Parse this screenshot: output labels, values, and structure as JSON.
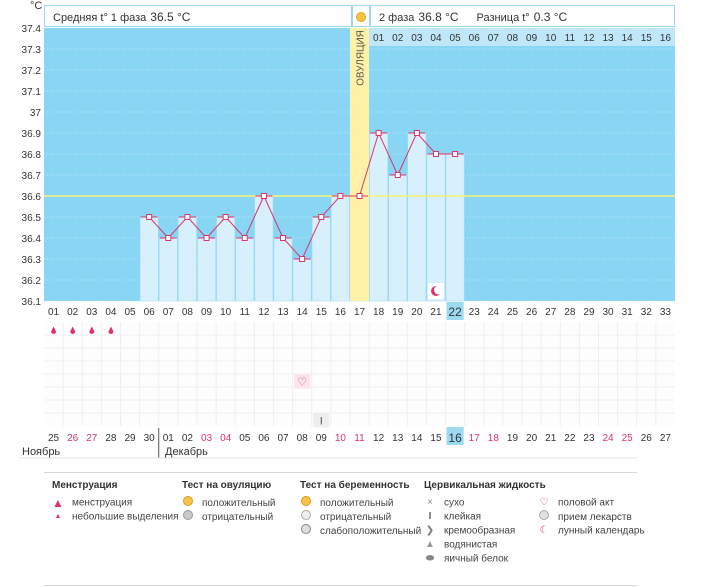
{
  "header": {
    "unit": "°C",
    "phase1_label": "Средняя t° 1 фаза",
    "phase1_value": "36.5 °C",
    "phase2_label": "2 фаза",
    "phase2_value": "36.8 °C",
    "diff_label": "Разница t°",
    "diff_value": "0.3 °C"
  },
  "chart_data": {
    "type": "line",
    "ylim": [
      36.1,
      37.4
    ],
    "y_ticks": [
      "37.4",
      "37.3",
      "37.2",
      "37.1",
      "37",
      "36.9",
      "36.8",
      "36.7",
      "36.6",
      "36.5",
      "36.4",
      "36.3",
      "36.2",
      "36.1"
    ],
    "coverline": 36.6,
    "ovulation_day": 17,
    "ovulation_label": "ОВУЛЯЦИЯ",
    "cycle_days": [
      "01",
      "02",
      "03",
      "04",
      "05",
      "06",
      "07",
      "08",
      "09",
      "10",
      "11",
      "12",
      "13",
      "14",
      "15",
      "16",
      "17",
      "18",
      "19",
      "20",
      "21",
      "22",
      "23",
      "24",
      "25",
      "26",
      "27",
      "28",
      "29",
      "30",
      "31",
      "32",
      "33"
    ],
    "phase2_days": [
      "01",
      "02",
      "03",
      "04",
      "05",
      "06",
      "07",
      "08",
      "09",
      "10",
      "11",
      "12",
      "13",
      "14",
      "15",
      "16"
    ],
    "series": [
      {
        "x": [
          6,
          7,
          8,
          9,
          10,
          11,
          12,
          13,
          14,
          15,
          16,
          17,
          18,
          19,
          20,
          21,
          22
        ],
        "values": [
          36.5,
          36.4,
          36.5,
          36.4,
          36.5,
          36.4,
          36.6,
          36.4,
          36.3,
          36.5,
          36.6,
          36.6,
          36.9,
          36.7,
          36.9,
          36.8,
          36.8
        ]
      }
    ],
    "current_cycle_day": "22",
    "calendar_dates": [
      "25",
      "26",
      "27",
      "28",
      "29",
      "30",
      "01",
      "02",
      "03",
      "04",
      "05",
      "06",
      "07",
      "08",
      "09",
      "10",
      "11",
      "12",
      "13",
      "14",
      "15",
      "16",
      "17",
      "18",
      "19",
      "20",
      "21",
      "22",
      "23",
      "24",
      "25",
      "26",
      "27"
    ],
    "weekend_dates": [
      2,
      3,
      9,
      10,
      16,
      17,
      23,
      24,
      30,
      31
    ],
    "current_date": "16",
    "months": [
      {
        "name": "Ноябрь",
        "start": 1
      },
      {
        "name": "Декабрь",
        "start": 7
      }
    ],
    "marks": [
      {
        "day": 1,
        "row": "menses",
        "icon": "drop-small"
      },
      {
        "day": 2,
        "row": "menses",
        "icon": "drop-small"
      },
      {
        "day": 3,
        "row": "menses",
        "icon": "drop-small"
      },
      {
        "day": 4,
        "row": "menses",
        "icon": "drop-small"
      },
      {
        "day": 14,
        "row": "intercourse",
        "icon": "heart"
      },
      {
        "day": 15,
        "row": "mucus",
        "icon": "sticky"
      },
      {
        "day": 21,
        "row": "chart",
        "icon": "moon"
      }
    ]
  },
  "legend": {
    "menstruation": {
      "title": "Менструация",
      "items": [
        "менструация",
        "небольшие выделения"
      ]
    },
    "ovulation_test": {
      "title": "Тест на овуляцию",
      "items": [
        "положительный",
        "отрицательный"
      ]
    },
    "pregnancy_test": {
      "title": "Тест на беременность",
      "items": [
        "положительный",
        "отрицательный",
        "слабоположительный"
      ]
    },
    "cervical": {
      "title": "Цервикальная жидкость",
      "items": [
        "сухо",
        "клейкая",
        "кремообразная",
        "водянистая",
        "яичный белок"
      ]
    },
    "other": {
      "items": [
        "половой акт",
        "прием лекарств",
        "лунный календарь"
      ]
    }
  },
  "colors": {
    "plot_bg": "#88d6f4",
    "bar_fill": "#d7f0fc",
    "ovulation": "#fff2a8",
    "line": "#d9366b",
    "coverline": "#f7f27a",
    "weekend": "#d9366b",
    "highlight": "#9cd9f2"
  }
}
